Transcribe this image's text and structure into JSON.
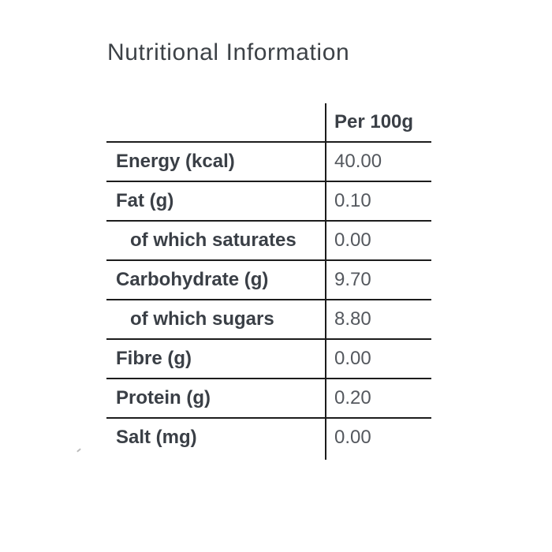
{
  "title": "Nutritional Information",
  "table": {
    "value_header": "Per 100g",
    "rows": [
      {
        "label": "Energy (kcal)",
        "value": "40.00",
        "indent": false
      },
      {
        "label": "Fat (g)",
        "value": "0.10",
        "indent": false
      },
      {
        "label": "of which saturates",
        "value": "0.00",
        "indent": true
      },
      {
        "label": "Carbohydrate (g)",
        "value": "9.70",
        "indent": false
      },
      {
        "label": "of which sugars",
        "value": "8.80",
        "indent": true
      },
      {
        "label": "Fibre (g)",
        "value": "0.00",
        "indent": false
      },
      {
        "label": "Protein (g)",
        "value": "0.20",
        "indent": false
      },
      {
        "label": "Salt (mg)",
        "value": "0.00",
        "indent": false
      }
    ]
  },
  "colors": {
    "background": "#ffffff",
    "title_text": "#3d4247",
    "label_text": "#3a3f46",
    "value_text": "#54585e",
    "table_lines": "#1c1c1c"
  }
}
